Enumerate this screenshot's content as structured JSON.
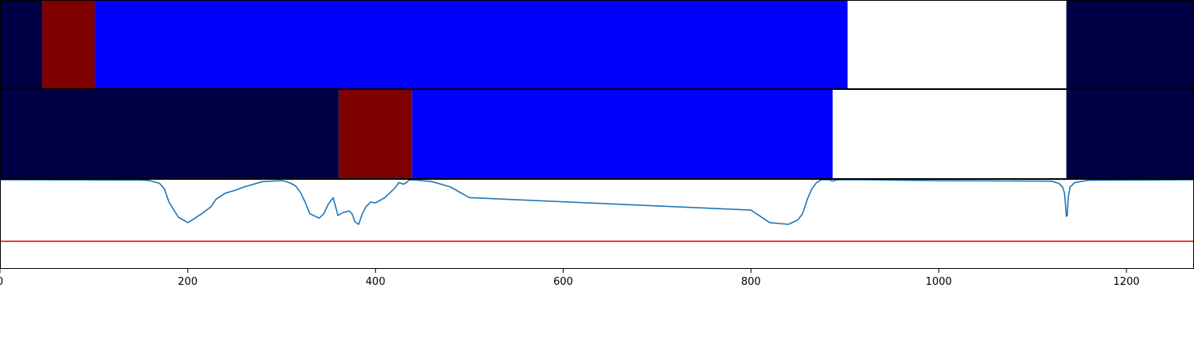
{
  "chart_data": {
    "type": "area",
    "x_axis": {
      "range": [
        0,
        1272
      ],
      "ticks": [
        0,
        200,
        400,
        600,
        800,
        1000,
        1200
      ],
      "tick_labels": [
        "0",
        "200",
        "400",
        "600",
        "800",
        "1000",
        "1200"
      ]
    },
    "tracks": [
      {
        "kind": "segments",
        "segments": [
          {
            "start": 0,
            "end": 45,
            "class": "dark"
          },
          {
            "start": 45,
            "end": 101,
            "class": "red"
          },
          {
            "start": 101,
            "end": 903,
            "class": "blue"
          },
          {
            "start": 903,
            "end": 1136,
            "class": "white"
          },
          {
            "start": 1136,
            "end": 1272,
            "class": "dark"
          }
        ]
      },
      {
        "kind": "segments",
        "segments": [
          {
            "start": 0,
            "end": 361,
            "class": "dark"
          },
          {
            "start": 361,
            "end": 439,
            "class": "red"
          },
          {
            "start": 439,
            "end": 887,
            "class": "blue"
          },
          {
            "start": 887,
            "end": 1136,
            "class": "white"
          },
          {
            "start": 1136,
            "end": 1272,
            "class": "dark"
          }
        ]
      },
      {
        "kind": "line",
        "y_range": [
          0,
          1
        ],
        "threshold": 0.31,
        "series": [
          {
            "color": "#1f77b4",
            "x": [
              0,
              150,
              160,
              170,
              175,
              180,
              190,
              200,
              205,
              215,
              225,
              230,
              240,
              250,
              260,
              280,
              300,
              305,
              310,
              315,
              320,
              325,
              330,
              340,
              342,
              345,
              350,
              355,
              360,
              365,
              368,
              372,
              375,
              378,
              382,
              386,
              390,
              395,
              400,
              410,
              420,
              425,
              430,
              433,
              435,
              436,
              437,
              438,
              440,
              445,
              450,
              460,
              480,
              500,
              800,
              820,
              840,
              850,
              855,
              860,
              865,
              870,
              875,
              880,
              884,
              886,
              887,
              888,
              890,
              893,
              898,
              905,
              920,
              1000,
              1120,
              1128,
              1132,
              1134,
              1135,
              1136,
              1137,
              1138,
              1140,
              1145,
              1160,
              1272
            ],
            "y": [
              1.0,
              0.997,
              0.99,
              0.96,
              0.9,
              0.75,
              0.58,
              0.52,
              0.55,
              0.62,
              0.7,
              0.78,
              0.85,
              0.88,
              0.92,
              0.98,
              0.99,
              0.98,
              0.96,
              0.93,
              0.86,
              0.75,
              0.62,
              0.57,
              0.59,
              0.62,
              0.73,
              0.8,
              0.6,
              0.63,
              0.64,
              0.65,
              0.62,
              0.53,
              0.5,
              0.62,
              0.7,
              0.75,
              0.74,
              0.8,
              0.9,
              0.97,
              0.95,
              0.97,
              0.99,
              0.997,
              1.0,
              0.998,
              0.999,
              0.995,
              0.99,
              0.98,
              0.92,
              0.8,
              0.66,
              0.52,
              0.5,
              0.55,
              0.62,
              0.78,
              0.9,
              0.97,
              1.0,
              1.0,
              1.0,
              0.99,
              0.985,
              0.99,
              0.995,
              1.0,
              1.0,
              1.0,
              1.0,
              0.99,
              0.985,
              0.96,
              0.92,
              0.85,
              0.74,
              0.59,
              0.6,
              0.8,
              0.92,
              0.97,
              0.995,
              1.0
            ]
          }
        ]
      }
    ]
  }
}
